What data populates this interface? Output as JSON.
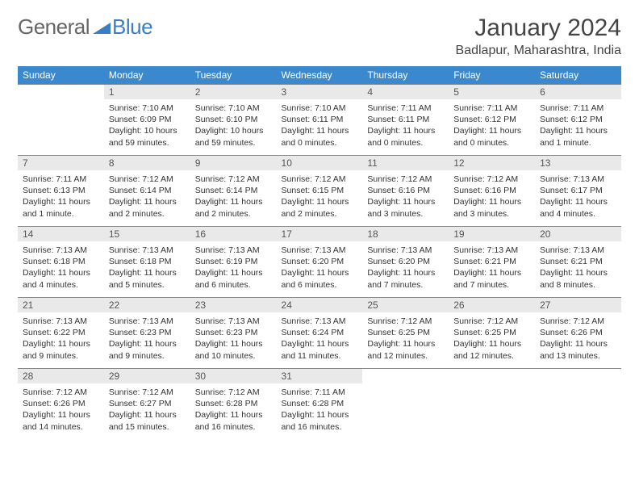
{
  "brand": {
    "part1": "General",
    "part2": "Blue",
    "logo_color": "#3a7fc4"
  },
  "title": "January 2024",
  "location": "Badlapur, Maharashtra, India",
  "header_bg": "#3a89cf",
  "daynum_bg": "#e9e9e9",
  "border_color": "#888888",
  "weekdays": [
    "Sunday",
    "Monday",
    "Tuesday",
    "Wednesday",
    "Thursday",
    "Friday",
    "Saturday"
  ],
  "weeks": [
    [
      null,
      {
        "n": "1",
        "sr": "Sunrise: 7:10 AM",
        "ss": "Sunset: 6:09 PM",
        "d1": "Daylight: 10 hours",
        "d2": "and 59 minutes."
      },
      {
        "n": "2",
        "sr": "Sunrise: 7:10 AM",
        "ss": "Sunset: 6:10 PM",
        "d1": "Daylight: 10 hours",
        "d2": "and 59 minutes."
      },
      {
        "n": "3",
        "sr": "Sunrise: 7:10 AM",
        "ss": "Sunset: 6:11 PM",
        "d1": "Daylight: 11 hours",
        "d2": "and 0 minutes."
      },
      {
        "n": "4",
        "sr": "Sunrise: 7:11 AM",
        "ss": "Sunset: 6:11 PM",
        "d1": "Daylight: 11 hours",
        "d2": "and 0 minutes."
      },
      {
        "n": "5",
        "sr": "Sunrise: 7:11 AM",
        "ss": "Sunset: 6:12 PM",
        "d1": "Daylight: 11 hours",
        "d2": "and 0 minutes."
      },
      {
        "n": "6",
        "sr": "Sunrise: 7:11 AM",
        "ss": "Sunset: 6:12 PM",
        "d1": "Daylight: 11 hours",
        "d2": "and 1 minute."
      }
    ],
    [
      {
        "n": "7",
        "sr": "Sunrise: 7:11 AM",
        "ss": "Sunset: 6:13 PM",
        "d1": "Daylight: 11 hours",
        "d2": "and 1 minute."
      },
      {
        "n": "8",
        "sr": "Sunrise: 7:12 AM",
        "ss": "Sunset: 6:14 PM",
        "d1": "Daylight: 11 hours",
        "d2": "and 2 minutes."
      },
      {
        "n": "9",
        "sr": "Sunrise: 7:12 AM",
        "ss": "Sunset: 6:14 PM",
        "d1": "Daylight: 11 hours",
        "d2": "and 2 minutes."
      },
      {
        "n": "10",
        "sr": "Sunrise: 7:12 AM",
        "ss": "Sunset: 6:15 PM",
        "d1": "Daylight: 11 hours",
        "d2": "and 2 minutes."
      },
      {
        "n": "11",
        "sr": "Sunrise: 7:12 AM",
        "ss": "Sunset: 6:16 PM",
        "d1": "Daylight: 11 hours",
        "d2": "and 3 minutes."
      },
      {
        "n": "12",
        "sr": "Sunrise: 7:12 AM",
        "ss": "Sunset: 6:16 PM",
        "d1": "Daylight: 11 hours",
        "d2": "and 3 minutes."
      },
      {
        "n": "13",
        "sr": "Sunrise: 7:13 AM",
        "ss": "Sunset: 6:17 PM",
        "d1": "Daylight: 11 hours",
        "d2": "and 4 minutes."
      }
    ],
    [
      {
        "n": "14",
        "sr": "Sunrise: 7:13 AM",
        "ss": "Sunset: 6:18 PM",
        "d1": "Daylight: 11 hours",
        "d2": "and 4 minutes."
      },
      {
        "n": "15",
        "sr": "Sunrise: 7:13 AM",
        "ss": "Sunset: 6:18 PM",
        "d1": "Daylight: 11 hours",
        "d2": "and 5 minutes."
      },
      {
        "n": "16",
        "sr": "Sunrise: 7:13 AM",
        "ss": "Sunset: 6:19 PM",
        "d1": "Daylight: 11 hours",
        "d2": "and 6 minutes."
      },
      {
        "n": "17",
        "sr": "Sunrise: 7:13 AM",
        "ss": "Sunset: 6:20 PM",
        "d1": "Daylight: 11 hours",
        "d2": "and 6 minutes."
      },
      {
        "n": "18",
        "sr": "Sunrise: 7:13 AM",
        "ss": "Sunset: 6:20 PM",
        "d1": "Daylight: 11 hours",
        "d2": "and 7 minutes."
      },
      {
        "n": "19",
        "sr": "Sunrise: 7:13 AM",
        "ss": "Sunset: 6:21 PM",
        "d1": "Daylight: 11 hours",
        "d2": "and 7 minutes."
      },
      {
        "n": "20",
        "sr": "Sunrise: 7:13 AM",
        "ss": "Sunset: 6:21 PM",
        "d1": "Daylight: 11 hours",
        "d2": "and 8 minutes."
      }
    ],
    [
      {
        "n": "21",
        "sr": "Sunrise: 7:13 AM",
        "ss": "Sunset: 6:22 PM",
        "d1": "Daylight: 11 hours",
        "d2": "and 9 minutes."
      },
      {
        "n": "22",
        "sr": "Sunrise: 7:13 AM",
        "ss": "Sunset: 6:23 PM",
        "d1": "Daylight: 11 hours",
        "d2": "and 9 minutes."
      },
      {
        "n": "23",
        "sr": "Sunrise: 7:13 AM",
        "ss": "Sunset: 6:23 PM",
        "d1": "Daylight: 11 hours",
        "d2": "and 10 minutes."
      },
      {
        "n": "24",
        "sr": "Sunrise: 7:13 AM",
        "ss": "Sunset: 6:24 PM",
        "d1": "Daylight: 11 hours",
        "d2": "and 11 minutes."
      },
      {
        "n": "25",
        "sr": "Sunrise: 7:12 AM",
        "ss": "Sunset: 6:25 PM",
        "d1": "Daylight: 11 hours",
        "d2": "and 12 minutes."
      },
      {
        "n": "26",
        "sr": "Sunrise: 7:12 AM",
        "ss": "Sunset: 6:25 PM",
        "d1": "Daylight: 11 hours",
        "d2": "and 12 minutes."
      },
      {
        "n": "27",
        "sr": "Sunrise: 7:12 AM",
        "ss": "Sunset: 6:26 PM",
        "d1": "Daylight: 11 hours",
        "d2": "and 13 minutes."
      }
    ],
    [
      {
        "n": "28",
        "sr": "Sunrise: 7:12 AM",
        "ss": "Sunset: 6:26 PM",
        "d1": "Daylight: 11 hours",
        "d2": "and 14 minutes."
      },
      {
        "n": "29",
        "sr": "Sunrise: 7:12 AM",
        "ss": "Sunset: 6:27 PM",
        "d1": "Daylight: 11 hours",
        "d2": "and 15 minutes."
      },
      {
        "n": "30",
        "sr": "Sunrise: 7:12 AM",
        "ss": "Sunset: 6:28 PM",
        "d1": "Daylight: 11 hours",
        "d2": "and 16 minutes."
      },
      {
        "n": "31",
        "sr": "Sunrise: 7:11 AM",
        "ss": "Sunset: 6:28 PM",
        "d1": "Daylight: 11 hours",
        "d2": "and 16 minutes."
      },
      null,
      null,
      null
    ]
  ]
}
